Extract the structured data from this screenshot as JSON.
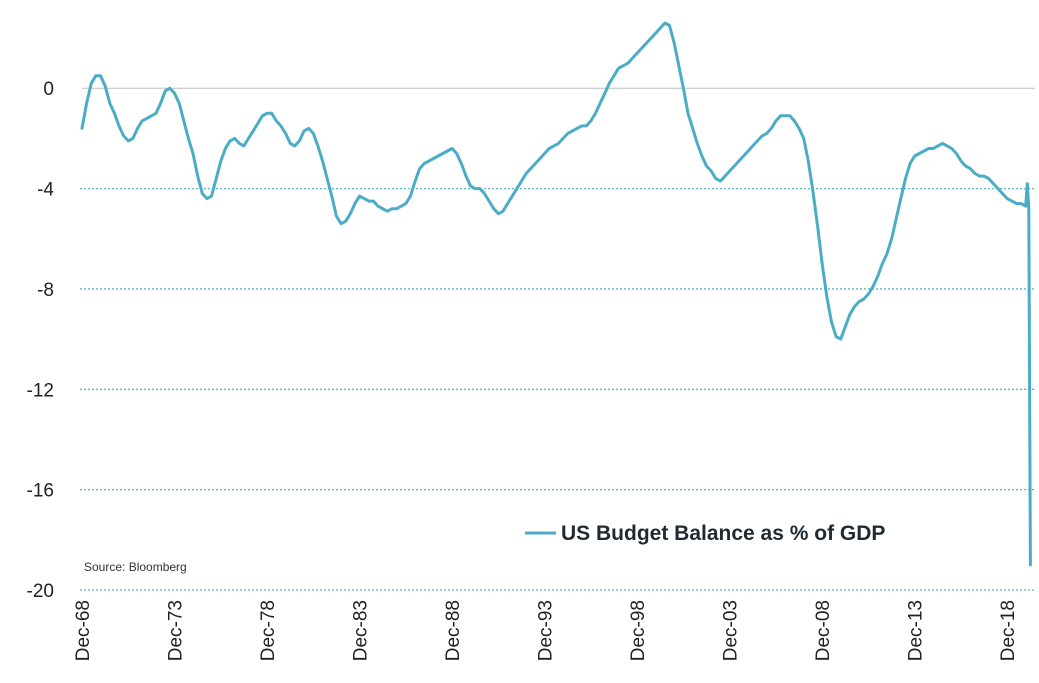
{
  "chart_data": {
    "type": "line",
    "series": [
      {
        "name": "US Budget Balance as % of GDP",
        "color": "#4bacc6",
        "points": [
          [
            "1968-12",
            -1.6
          ],
          [
            "1969-03",
            -0.6
          ],
          [
            "1969-06",
            0.2
          ],
          [
            "1969-09",
            0.5
          ],
          [
            "1969-12",
            0.5
          ],
          [
            "1970-03",
            0.1
          ],
          [
            "1970-06",
            -0.6
          ],
          [
            "1970-09",
            -1.0
          ],
          [
            "1970-12",
            -1.5
          ],
          [
            "1971-03",
            -1.9
          ],
          [
            "1971-06",
            -2.1
          ],
          [
            "1971-09",
            -2.0
          ],
          [
            "1971-12",
            -1.6
          ],
          [
            "1972-03",
            -1.3
          ],
          [
            "1972-06",
            -1.2
          ],
          [
            "1972-09",
            -1.1
          ],
          [
            "1972-12",
            -1.0
          ],
          [
            "1973-03",
            -0.6
          ],
          [
            "1973-06",
            -0.1
          ],
          [
            "1973-09",
            0.0
          ],
          [
            "1973-12",
            -0.2
          ],
          [
            "1974-03",
            -0.6
          ],
          [
            "1974-06",
            -1.3
          ],
          [
            "1974-09",
            -2.0
          ],
          [
            "1974-12",
            -2.6
          ],
          [
            "1975-03",
            -3.5
          ],
          [
            "1975-06",
            -4.2
          ],
          [
            "1975-09",
            -4.4
          ],
          [
            "1975-12",
            -4.3
          ],
          [
            "1976-03",
            -3.6
          ],
          [
            "1976-06",
            -2.9
          ],
          [
            "1976-09",
            -2.4
          ],
          [
            "1976-12",
            -2.1
          ],
          [
            "1977-03",
            -2.0
          ],
          [
            "1977-06",
            -2.2
          ],
          [
            "1977-09",
            -2.3
          ],
          [
            "1977-12",
            -2.0
          ],
          [
            "1978-03",
            -1.7
          ],
          [
            "1978-06",
            -1.4
          ],
          [
            "1978-09",
            -1.1
          ],
          [
            "1978-12",
            -1.0
          ],
          [
            "1979-03",
            -1.0
          ],
          [
            "1979-06",
            -1.3
          ],
          [
            "1979-09",
            -1.5
          ],
          [
            "1979-12",
            -1.8
          ],
          [
            "1980-03",
            -2.2
          ],
          [
            "1980-06",
            -2.3
          ],
          [
            "1980-09",
            -2.1
          ],
          [
            "1980-12",
            -1.7
          ],
          [
            "1981-03",
            -1.6
          ],
          [
            "1981-06",
            -1.8
          ],
          [
            "1981-09",
            -2.3
          ],
          [
            "1981-12",
            -2.9
          ],
          [
            "1982-03",
            -3.6
          ],
          [
            "1982-06",
            -4.3
          ],
          [
            "1982-09",
            -5.1
          ],
          [
            "1982-12",
            -5.4
          ],
          [
            "1983-03",
            -5.3
          ],
          [
            "1983-06",
            -5.0
          ],
          [
            "1983-09",
            -4.6
          ],
          [
            "1983-12",
            -4.3
          ],
          [
            "1984-03",
            -4.4
          ],
          [
            "1984-06",
            -4.5
          ],
          [
            "1984-09",
            -4.5
          ],
          [
            "1984-12",
            -4.7
          ],
          [
            "1985-03",
            -4.8
          ],
          [
            "1985-06",
            -4.9
          ],
          [
            "1985-09",
            -4.8
          ],
          [
            "1985-12",
            -4.8
          ],
          [
            "1986-03",
            -4.7
          ],
          [
            "1986-06",
            -4.6
          ],
          [
            "1986-09",
            -4.3
          ],
          [
            "1986-12",
            -3.7
          ],
          [
            "1987-03",
            -3.2
          ],
          [
            "1987-06",
            -3.0
          ],
          [
            "1987-09",
            -2.9
          ],
          [
            "1987-12",
            -2.8
          ],
          [
            "1988-03",
            -2.7
          ],
          [
            "1988-06",
            -2.6
          ],
          [
            "1988-09",
            -2.5
          ],
          [
            "1988-12",
            -2.4
          ],
          [
            "1989-03",
            -2.6
          ],
          [
            "1989-06",
            -3.0
          ],
          [
            "1989-09",
            -3.5
          ],
          [
            "1989-12",
            -3.9
          ],
          [
            "1990-03",
            -4.0
          ],
          [
            "1990-06",
            -4.0
          ],
          [
            "1990-09",
            -4.2
          ],
          [
            "1990-12",
            -4.5
          ],
          [
            "1991-03",
            -4.8
          ],
          [
            "1991-06",
            -5.0
          ],
          [
            "1991-09",
            -4.9
          ],
          [
            "1991-12",
            -4.6
          ],
          [
            "1992-03",
            -4.3
          ],
          [
            "1992-06",
            -4.0
          ],
          [
            "1992-09",
            -3.7
          ],
          [
            "1992-12",
            -3.4
          ],
          [
            "1993-03",
            -3.2
          ],
          [
            "1993-06",
            -3.0
          ],
          [
            "1993-09",
            -2.8
          ],
          [
            "1993-12",
            -2.6
          ],
          [
            "1994-03",
            -2.4
          ],
          [
            "1994-06",
            -2.3
          ],
          [
            "1994-09",
            -2.2
          ],
          [
            "1994-12",
            -2.0
          ],
          [
            "1995-03",
            -1.8
          ],
          [
            "1995-06",
            -1.7
          ],
          [
            "1995-09",
            -1.6
          ],
          [
            "1995-12",
            -1.5
          ],
          [
            "1996-03",
            -1.5
          ],
          [
            "1996-06",
            -1.3
          ],
          [
            "1996-09",
            -1.0
          ],
          [
            "1996-12",
            -0.6
          ],
          [
            "1997-03",
            -0.2
          ],
          [
            "1997-06",
            0.2
          ],
          [
            "1997-09",
            0.5
          ],
          [
            "1997-12",
            0.8
          ],
          [
            "1998-03",
            0.9
          ],
          [
            "1998-06",
            1.0
          ],
          [
            "1998-09",
            1.2
          ],
          [
            "1998-12",
            1.4
          ],
          [
            "1999-03",
            1.6
          ],
          [
            "1999-06",
            1.8
          ],
          [
            "1999-09",
            2.0
          ],
          [
            "1999-12",
            2.2
          ],
          [
            "2000-03",
            2.4
          ],
          [
            "2000-06",
            2.6
          ],
          [
            "2000-09",
            2.5
          ],
          [
            "2000-12",
            1.8
          ],
          [
            "2001-03",
            0.9
          ],
          [
            "2001-06",
            0.0
          ],
          [
            "2001-09",
            -1.0
          ],
          [
            "2001-12",
            -1.6
          ],
          [
            "2002-03",
            -2.2
          ],
          [
            "2002-06",
            -2.7
          ],
          [
            "2002-09",
            -3.1
          ],
          [
            "2002-12",
            -3.3
          ],
          [
            "2003-03",
            -3.6
          ],
          [
            "2003-06",
            -3.7
          ],
          [
            "2003-09",
            -3.5
          ],
          [
            "2003-12",
            -3.3
          ],
          [
            "2004-03",
            -3.1
          ],
          [
            "2004-06",
            -2.9
          ],
          [
            "2004-09",
            -2.7
          ],
          [
            "2004-12",
            -2.5
          ],
          [
            "2005-03",
            -2.3
          ],
          [
            "2005-06",
            -2.1
          ],
          [
            "2005-09",
            -1.9
          ],
          [
            "2005-12",
            -1.8
          ],
          [
            "2006-03",
            -1.6
          ],
          [
            "2006-06",
            -1.3
          ],
          [
            "2006-09",
            -1.1
          ],
          [
            "2006-12",
            -1.1
          ],
          [
            "2007-03",
            -1.1
          ],
          [
            "2007-06",
            -1.3
          ],
          [
            "2007-09",
            -1.6
          ],
          [
            "2007-12",
            -2.0
          ],
          [
            "2008-03",
            -2.9
          ],
          [
            "2008-06",
            -4.1
          ],
          [
            "2008-09",
            -5.5
          ],
          [
            "2008-12",
            -7.0
          ],
          [
            "2009-03",
            -8.3
          ],
          [
            "2009-06",
            -9.3
          ],
          [
            "2009-09",
            -9.9
          ],
          [
            "2009-12",
            -10.0
          ],
          [
            "2010-03",
            -9.5
          ],
          [
            "2010-06",
            -9.0
          ],
          [
            "2010-09",
            -8.7
          ],
          [
            "2010-12",
            -8.5
          ],
          [
            "2011-03",
            -8.4
          ],
          [
            "2011-06",
            -8.2
          ],
          [
            "2011-09",
            -7.9
          ],
          [
            "2011-12",
            -7.5
          ],
          [
            "2012-03",
            -7.0
          ],
          [
            "2012-06",
            -6.6
          ],
          [
            "2012-09",
            -6.0
          ],
          [
            "2012-12",
            -5.2
          ],
          [
            "2013-03",
            -4.4
          ],
          [
            "2013-06",
            -3.6
          ],
          [
            "2013-09",
            -3.0
          ],
          [
            "2013-12",
            -2.7
          ],
          [
            "2014-03",
            -2.6
          ],
          [
            "2014-06",
            -2.5
          ],
          [
            "2014-09",
            -2.4
          ],
          [
            "2014-12",
            -2.4
          ],
          [
            "2015-03",
            -2.3
          ],
          [
            "2015-06",
            -2.2
          ],
          [
            "2015-09",
            -2.3
          ],
          [
            "2015-12",
            -2.4
          ],
          [
            "2016-03",
            -2.6
          ],
          [
            "2016-06",
            -2.9
          ],
          [
            "2016-09",
            -3.1
          ],
          [
            "2016-12",
            -3.2
          ],
          [
            "2017-03",
            -3.4
          ],
          [
            "2017-06",
            -3.5
          ],
          [
            "2017-09",
            -3.5
          ],
          [
            "2017-12",
            -3.6
          ],
          [
            "2018-03",
            -3.8
          ],
          [
            "2018-06",
            -4.0
          ],
          [
            "2018-09",
            -4.2
          ],
          [
            "2018-12",
            -4.4
          ],
          [
            "2019-03",
            -4.5
          ],
          [
            "2019-06",
            -4.6
          ],
          [
            "2019-09",
            -4.6
          ],
          [
            "2019-12",
            -4.7
          ],
          [
            "2020-01",
            -3.8
          ],
          [
            "2020-02",
            -4.8
          ],
          [
            "2020-03",
            -19.0
          ]
        ]
      }
    ],
    "x_ticks": [
      {
        "date": "1968-12",
        "label": "Dec-68"
      },
      {
        "date": "1973-12",
        "label": "Dec-73"
      },
      {
        "date": "1978-12",
        "label": "Dec-78"
      },
      {
        "date": "1983-12",
        "label": "Dec-83"
      },
      {
        "date": "1988-12",
        "label": "Dec-88"
      },
      {
        "date": "1993-12",
        "label": "Dec-93"
      },
      {
        "date": "1998-12",
        "label": "Dec-98"
      },
      {
        "date": "2003-12",
        "label": "Dec-03"
      },
      {
        "date": "2008-12",
        "label": "Dec-08"
      },
      {
        "date": "2013-12",
        "label": "Dec-13"
      },
      {
        "date": "2018-12",
        "label": "Dec-18"
      }
    ],
    "xlim": [
      "1968-12",
      "2020-06"
    ],
    "y_ticks": [
      0,
      -4,
      -8,
      -12,
      -16,
      -20
    ],
    "y_tick_labels": [
      "0",
      "-4",
      "-8",
      "-12",
      "-16",
      "-20"
    ],
    "ylim": [
      -20,
      2.8
    ],
    "grid": "horizontal dotted",
    "legend_placement": "lower-right",
    "source": "Source: Bloomberg",
    "title": "",
    "xlabel": "",
    "ylabel": ""
  }
}
